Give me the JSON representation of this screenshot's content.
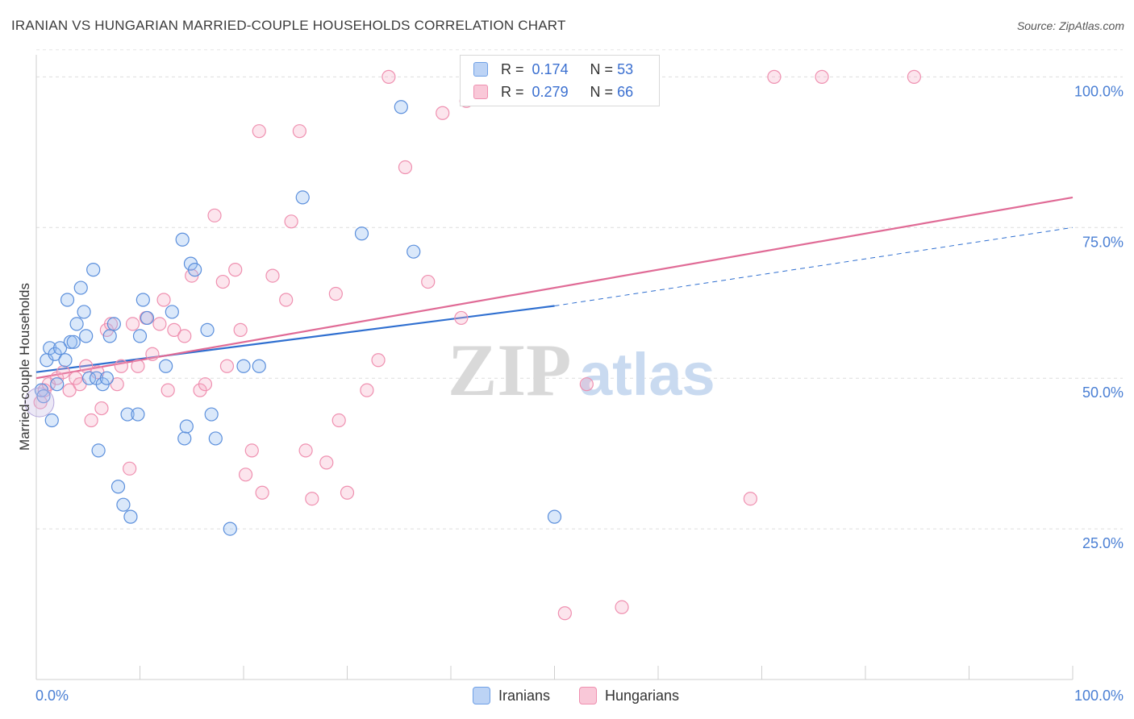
{
  "title": "IRANIAN VS HUNGARIAN MARRIED-COUPLE HOUSEHOLDS CORRELATION CHART",
  "source": "Source: ZipAtlas.com",
  "watermark": {
    "zip": "ZIP",
    "atlas": "atlas"
  },
  "legend": {
    "r_label": "R =",
    "n_label": "N =",
    "rows": [
      {
        "r": "0.174",
        "n": "53"
      },
      {
        "r": "0.279",
        "n": "66"
      }
    ]
  },
  "bottom_legend": [
    "Iranians",
    "Hungarians"
  ],
  "chart_data": {
    "type": "scatter",
    "ylabel": "Married-couple Households",
    "xlabel": "",
    "xlim": [
      0,
      100
    ],
    "ylim": [
      0,
      105
    ],
    "x_tick_labels": [
      {
        "x": 0,
        "label": "0.0%"
      },
      {
        "x": 100,
        "label": "100.0%"
      }
    ],
    "y_tick_labels": [
      {
        "y": 25,
        "label": "25.0%"
      },
      {
        "y": 50,
        "label": "50.0%"
      },
      {
        "y": 75,
        "label": "75.0%"
      },
      {
        "y": 100,
        "label": "100.0%"
      }
    ],
    "grid": true,
    "colors": {
      "Iranians": "#6fa0e6",
      "Hungarians": "#ef90b0",
      "iran_line": "#2f6fd0",
      "hun_line": "#e06b96"
    },
    "series": [
      {
        "name": "Iranians",
        "points": [
          [
            0.5,
            48
          ],
          [
            0.7,
            47
          ],
          [
            1.0,
            53
          ],
          [
            1.3,
            55
          ],
          [
            1.5,
            43
          ],
          [
            1.8,
            54
          ],
          [
            2.0,
            49
          ],
          [
            2.3,
            55
          ],
          [
            2.8,
            53
          ],
          [
            3.0,
            63
          ],
          [
            3.3,
            56
          ],
          [
            3.6,
            56
          ],
          [
            3.9,
            59
          ],
          [
            4.3,
            65
          ],
          [
            4.6,
            61
          ],
          [
            4.8,
            57
          ],
          [
            5.1,
            50
          ],
          [
            5.5,
            68
          ],
          [
            5.8,
            50
          ],
          [
            6.0,
            38
          ],
          [
            6.4,
            49
          ],
          [
            6.8,
            50
          ],
          [
            7.1,
            57
          ],
          [
            7.5,
            59
          ],
          [
            7.9,
            32
          ],
          [
            8.4,
            29
          ],
          [
            8.8,
            44
          ],
          [
            9.1,
            27
          ],
          [
            9.8,
            44
          ],
          [
            10.0,
            57
          ],
          [
            10.3,
            63
          ],
          [
            10.7,
            60
          ],
          [
            12.5,
            52
          ],
          [
            13.1,
            61
          ],
          [
            14.1,
            73
          ],
          [
            14.3,
            40
          ],
          [
            14.5,
            42
          ],
          [
            14.9,
            69
          ],
          [
            15.3,
            68
          ],
          [
            16.5,
            58
          ],
          [
            16.9,
            44
          ],
          [
            17.3,
            40
          ],
          [
            18.7,
            25
          ],
          [
            20.0,
            52
          ],
          [
            21.5,
            52
          ],
          [
            25.7,
            80
          ],
          [
            31.4,
            74
          ],
          [
            35.2,
            95
          ],
          [
            36.4,
            71
          ],
          [
            50.0,
            27
          ]
        ],
        "trend": {
          "x0": 0,
          "y0": 51,
          "x1": 50,
          "y1": 62,
          "extend_x1": 100,
          "extend_y1": 75
        }
      },
      {
        "name": "Hungarians",
        "points": [
          [
            0.4,
            46
          ],
          [
            0.8,
            48
          ],
          [
            1.2,
            49
          ],
          [
            2.0,
            50
          ],
          [
            2.6,
            51
          ],
          [
            3.2,
            48
          ],
          [
            3.8,
            50
          ],
          [
            4.2,
            49
          ],
          [
            4.8,
            52
          ],
          [
            5.3,
            43
          ],
          [
            5.9,
            51
          ],
          [
            6.3,
            45
          ],
          [
            6.8,
            58
          ],
          [
            7.2,
            59
          ],
          [
            7.8,
            49
          ],
          [
            8.2,
            52
          ],
          [
            9.0,
            35
          ],
          [
            9.3,
            59
          ],
          [
            9.8,
            52
          ],
          [
            10.6,
            60
          ],
          [
            11.2,
            54
          ],
          [
            11.9,
            59
          ],
          [
            12.3,
            63
          ],
          [
            12.7,
            48
          ],
          [
            13.3,
            58
          ],
          [
            14.3,
            57
          ],
          [
            15.0,
            67
          ],
          [
            15.8,
            48
          ],
          [
            16.3,
            49
          ],
          [
            17.2,
            77
          ],
          [
            18.0,
            66
          ],
          [
            18.4,
            52
          ],
          [
            19.2,
            68
          ],
          [
            19.7,
            58
          ],
          [
            20.2,
            34
          ],
          [
            20.8,
            38
          ],
          [
            21.5,
            91
          ],
          [
            21.8,
            31
          ],
          [
            22.8,
            67
          ],
          [
            24.1,
            63
          ],
          [
            24.6,
            76
          ],
          [
            25.4,
            91
          ],
          [
            26.0,
            38
          ],
          [
            26.6,
            30
          ],
          [
            28.0,
            36
          ],
          [
            28.9,
            64
          ],
          [
            29.2,
            43
          ],
          [
            30.0,
            31
          ],
          [
            31.9,
            48
          ],
          [
            33.0,
            53
          ],
          [
            34.0,
            100
          ],
          [
            35.6,
            85
          ],
          [
            37.8,
            66
          ],
          [
            39.2,
            94
          ],
          [
            41.0,
            60
          ],
          [
            51.0,
            11
          ],
          [
            53.1,
            49
          ],
          [
            56.5,
            12
          ],
          [
            68.9,
            30
          ],
          [
            71.2,
            100
          ],
          [
            75.8,
            100
          ],
          [
            84.7,
            100
          ],
          [
            41.5,
            96
          ]
        ],
        "trend": {
          "x0": 0,
          "y0": 50,
          "x1": 100,
          "y1": 80
        }
      }
    ]
  }
}
